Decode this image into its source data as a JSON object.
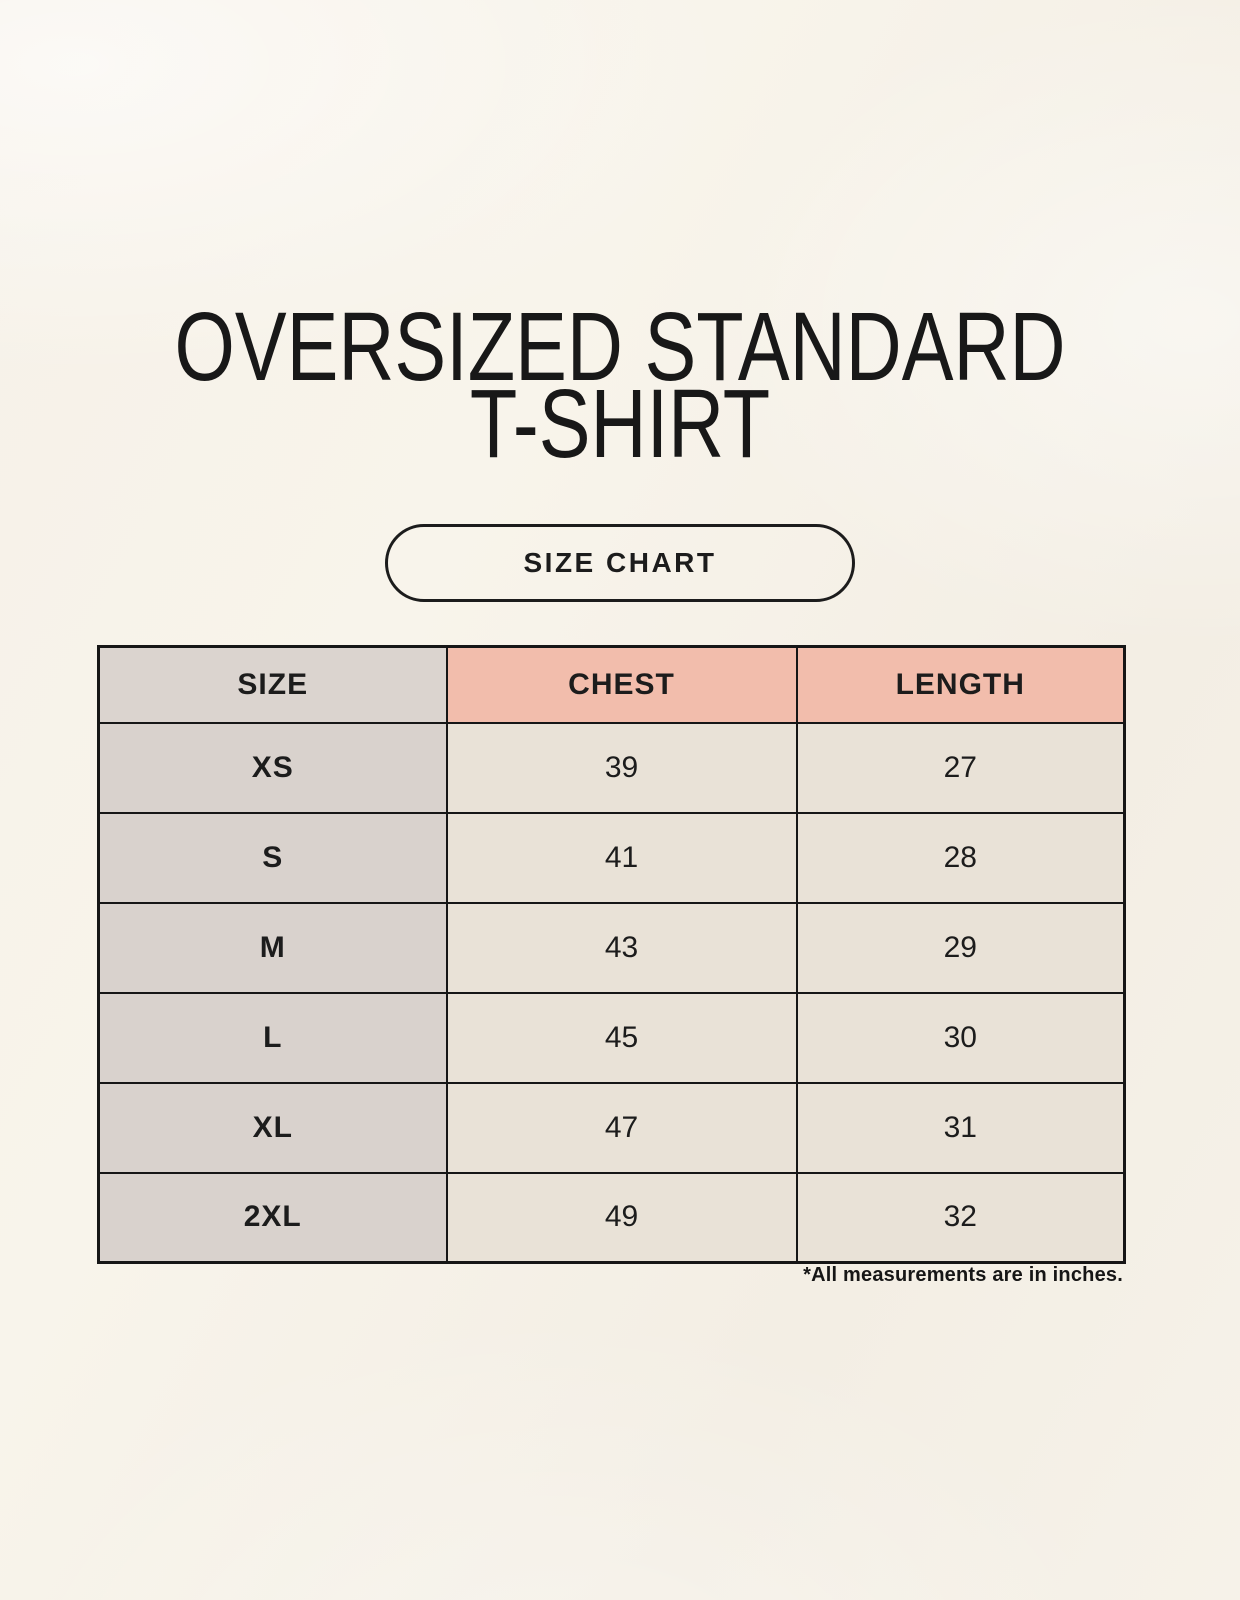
{
  "title": {
    "line1": "OVERSIZED STANDARD",
    "line2": "T-SHIRT"
  },
  "size_chart_button": {
    "label": "SIZE CHART"
  },
  "table": {
    "headers": [
      {
        "label": "SIZE"
      },
      {
        "label": "CHEST"
      },
      {
        "label": "LENGTH"
      }
    ],
    "rows": [
      {
        "size": "XS",
        "chest": "39",
        "length": "27"
      },
      {
        "size": "S",
        "chest": "41",
        "length": "28"
      },
      {
        "size": "M",
        "chest": "43",
        "length": "29"
      },
      {
        "size": "L",
        "chest": "45",
        "length": "30"
      },
      {
        "size": "XL",
        "chest": "47",
        "length": "31"
      },
      {
        "size": "2XL",
        "chest": "49",
        "length": "32"
      }
    ]
  },
  "footnote": "*All measurements are in inches.",
  "colors": {
    "background": "#f6f1e8",
    "header_size_bg": "#dbd4cf",
    "header_measure_bg": "#f2bdac",
    "row_label_bg": "#d9d2cd",
    "value_cell_bg": "#e9e2d7",
    "border": "#161616",
    "text": "#1c1c1c"
  },
  "chart_data": {
    "type": "table",
    "title": "OVERSIZED STANDARD T-SHIRT",
    "columns": [
      "SIZE",
      "CHEST",
      "LENGTH"
    ],
    "rows": [
      [
        "XS",
        39,
        27
      ],
      [
        "S",
        41,
        28
      ],
      [
        "M",
        43,
        29
      ],
      [
        "L",
        45,
        30
      ],
      [
        "XL",
        47,
        31
      ],
      [
        "2XL",
        49,
        32
      ]
    ],
    "units": "inches",
    "note": "*All measurements are in inches."
  }
}
